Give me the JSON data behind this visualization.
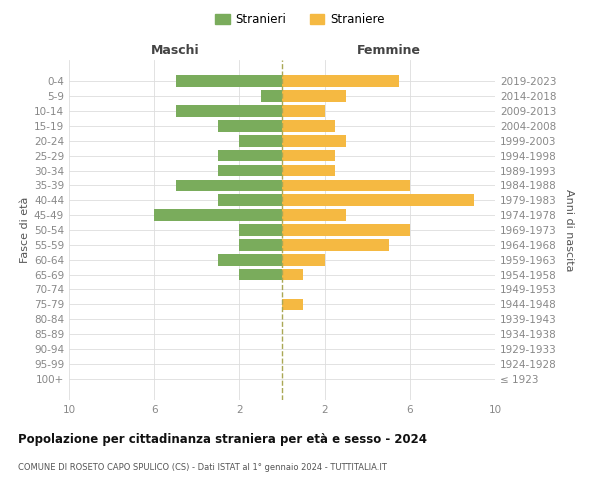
{
  "age_groups": [
    "100+",
    "95-99",
    "90-94",
    "85-89",
    "80-84",
    "75-79",
    "70-74",
    "65-69",
    "60-64",
    "55-59",
    "50-54",
    "45-49",
    "40-44",
    "35-39",
    "30-34",
    "25-29",
    "20-24",
    "15-19",
    "10-14",
    "5-9",
    "0-4"
  ],
  "birth_years": [
    "≤ 1923",
    "1924-1928",
    "1929-1933",
    "1934-1938",
    "1939-1943",
    "1944-1948",
    "1949-1953",
    "1954-1958",
    "1959-1963",
    "1964-1968",
    "1969-1973",
    "1974-1978",
    "1979-1983",
    "1984-1988",
    "1989-1993",
    "1994-1998",
    "1999-2003",
    "2004-2008",
    "2009-2013",
    "2014-2018",
    "2019-2023"
  ],
  "maschi": [
    0,
    0,
    0,
    0,
    0,
    0,
    0,
    2,
    3,
    2,
    2,
    6,
    3,
    5,
    3,
    3,
    2,
    3,
    5,
    1,
    5
  ],
  "femmine": [
    0,
    0,
    0,
    0,
    0,
    1,
    0,
    1,
    2,
    5,
    6,
    3,
    9,
    6,
    2.5,
    2.5,
    3,
    2.5,
    2,
    3,
    5.5
  ],
  "color_maschi": "#7aac5c",
  "color_femmine": "#f5b942",
  "title": "Popolazione per cittadinanza straniera per età e sesso - 2024",
  "subtitle": "COMUNE DI ROSETO CAPO SPULICO (CS) - Dati ISTAT al 1° gennaio 2024 - TUTTITALIA.IT",
  "legend_maschi": "Stranieri",
  "legend_femmine": "Straniere",
  "xlabel_left": "Maschi",
  "xlabel_right": "Femmine",
  "ylabel_left": "Fasce di età",
  "ylabel_right": "Anni di nascita",
  "xlim": 10,
  "background_color": "#ffffff",
  "grid_color": "#dddddd",
  "center_line_color": "#aaa855"
}
